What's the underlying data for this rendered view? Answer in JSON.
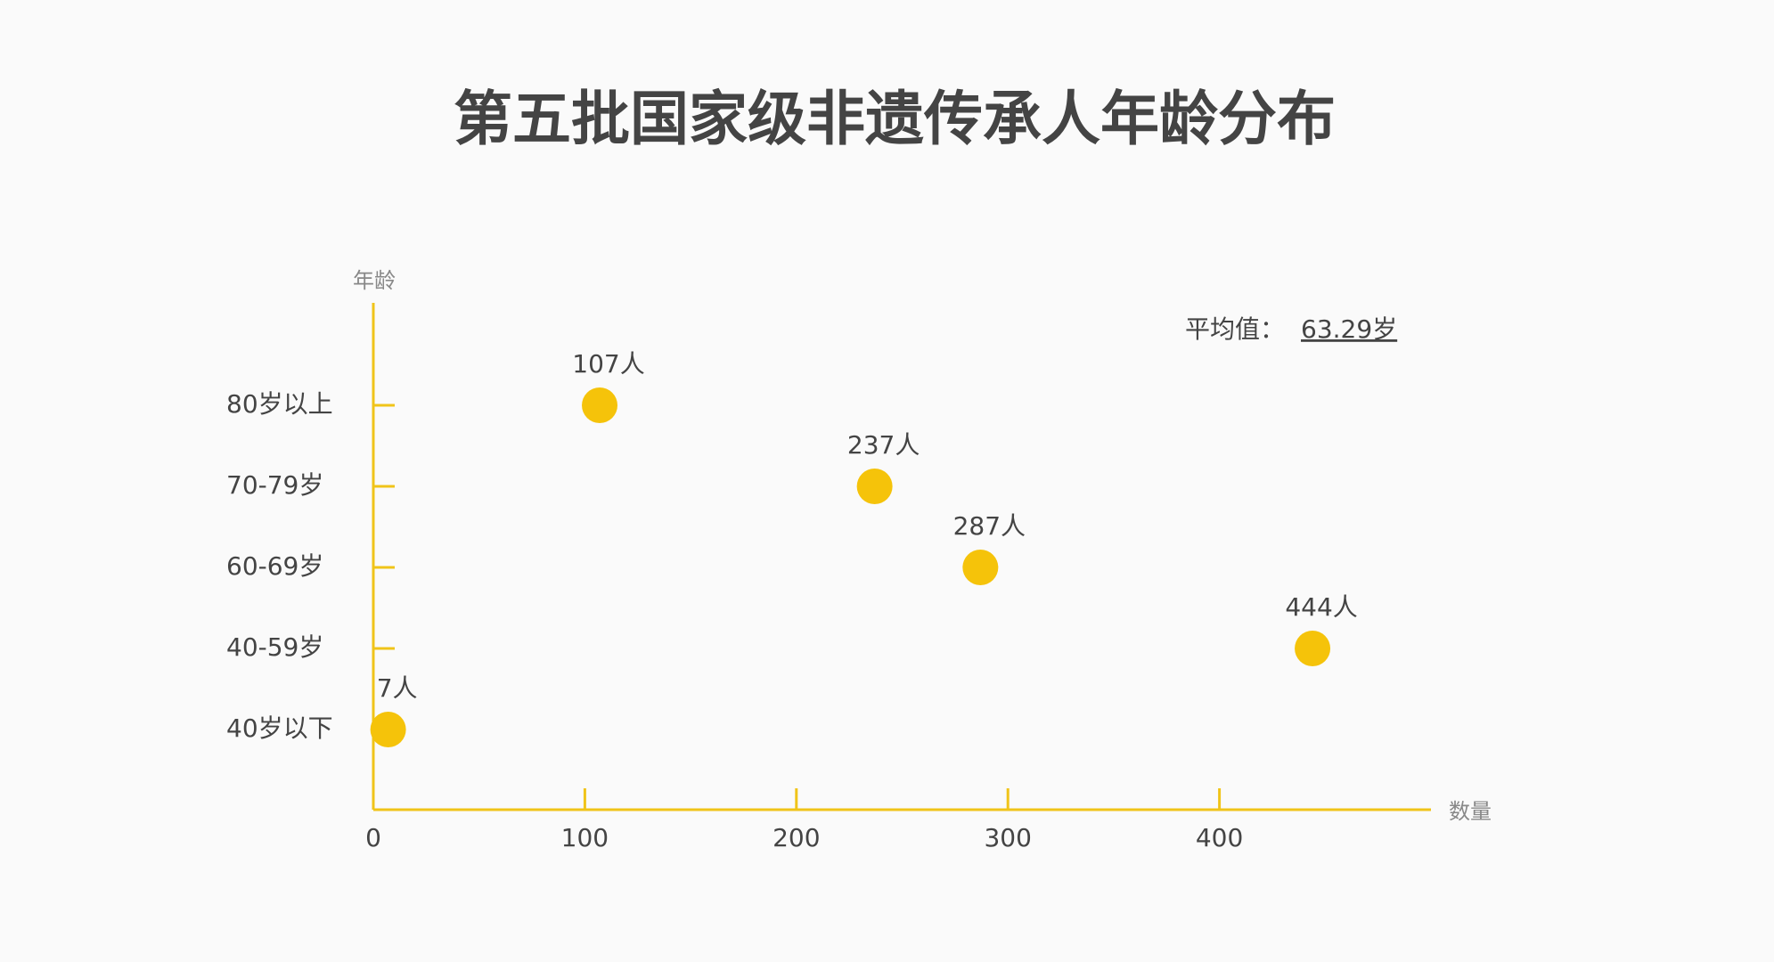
{
  "chart_data": {
    "type": "scatter",
    "title": "第五批国家级非遗传承人年龄分布",
    "x_label": "数量",
    "y_label": "年龄",
    "categories": [
      "80岁以上",
      "70-79岁",
      "60-69岁",
      "40-59岁",
      "40岁以下"
    ],
    "values": [
      107,
      237,
      287,
      444,
      7
    ],
    "value_labels": [
      "107人",
      "237人",
      "287人",
      "444人",
      "7人"
    ],
    "color": "#f5c30a",
    "axis_color": "#f0c419",
    "xlim": [
      0,
      500
    ],
    "xticks": [
      0,
      100,
      200,
      300,
      400
    ],
    "annotation": {
      "label": "平均值：",
      "value": "63.29岁"
    }
  }
}
